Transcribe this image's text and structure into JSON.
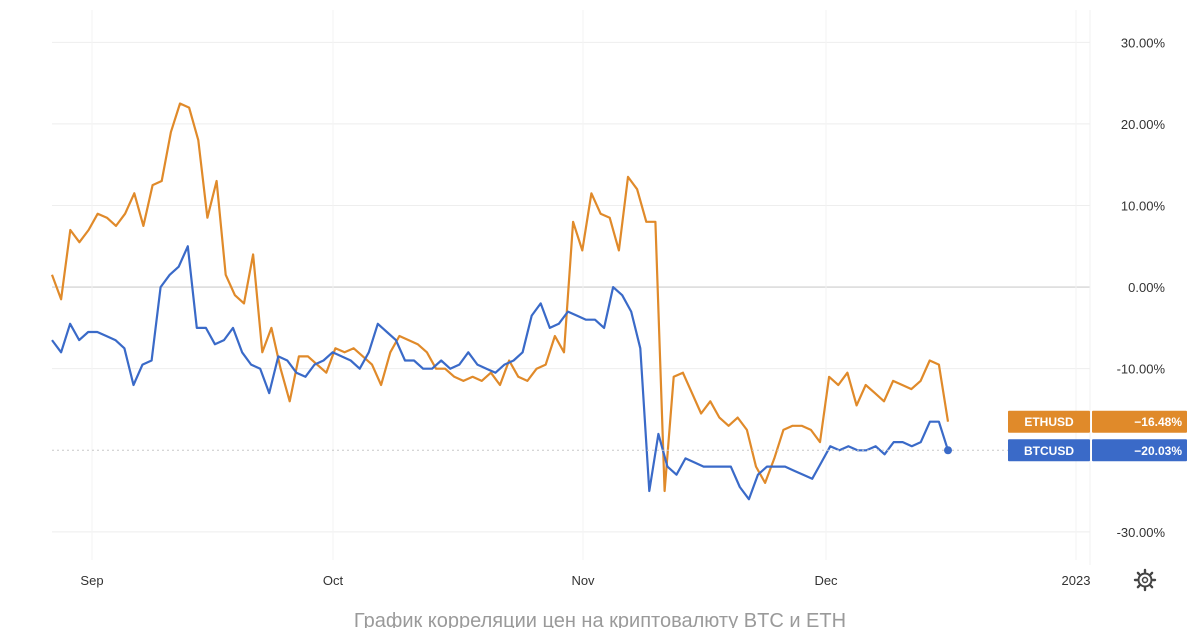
{
  "colors": {
    "eth": "#e08a2a",
    "btc": "#3a6ac8",
    "grid": "#eeeeee",
    "zero": "#cccccc",
    "axis_text": "#333333"
  },
  "caption": "График корреляции цен на криптовалюту BTC и ETH",
  "settings_icon": "gear-icon",
  "chart_data": {
    "type": "line",
    "x_ticks": [
      "Sep",
      "Oct",
      "Nov",
      "Dec",
      "2023"
    ],
    "y_ticks": [
      "30.00%",
      "20.00%",
      "10.00%",
      "0.00%",
      "-10.00%",
      "-30.00%"
    ],
    "y_tick_values": [
      30,
      20,
      10,
      0,
      -10,
      -30
    ],
    "ylim": [
      -31,
      32
    ],
    "grid": true,
    "legend": "right",
    "series": [
      {
        "name": "ETHUSD",
        "last_label": "ETHUSD",
        "last_value": "−16.48%",
        "values": [
          1.5,
          -1.5,
          7,
          5.5,
          7,
          9,
          8.5,
          7.5,
          9,
          11.5,
          7.5,
          12.5,
          13,
          19,
          22.5,
          22,
          18,
          8.5,
          13,
          1.5,
          -1,
          -2,
          4,
          -8,
          -5,
          -10,
          -14,
          -8.5,
          -8.5,
          -9.5,
          -10.5,
          -7.5,
          -8,
          -7.5,
          -8.5,
          -9.5,
          -12,
          -8,
          -6,
          -6.5,
          -7,
          -8,
          -10,
          -10,
          -11,
          -11.5,
          -11,
          -11.5,
          -10.5,
          -12,
          -9,
          -11,
          -11.5,
          -10,
          -9.5,
          -6,
          -8,
          8,
          4.5,
          11.5,
          9,
          8.5,
          4.5,
          13.5,
          12,
          8,
          8,
          -25,
          -11,
          -10.5,
          -13,
          -15.5,
          -14,
          -16,
          -17,
          -16,
          -17.5,
          -22,
          -24,
          -21,
          -17.5,
          -17,
          -17,
          -17.5,
          -19,
          -11,
          -12,
          -10.5,
          -14.5,
          -12,
          -13,
          -14,
          -11.5,
          -12,
          -12.5,
          -11.5,
          -9,
          -9.5,
          -16.5
        ],
        "color": "#e08a2a"
      },
      {
        "name": "BTCUSD",
        "last_label": "BTCUSD",
        "last_value": "−20.03%",
        "values": [
          -6.5,
          -8,
          -4.5,
          -6.5,
          -5.5,
          -5.5,
          -6,
          -6.5,
          -7.5,
          -12,
          -9.5,
          -9,
          0,
          1.5,
          2.5,
          5,
          -5,
          -5,
          -7,
          -6.5,
          -5,
          -8,
          -9.5,
          -10,
          -13,
          -8.5,
          -9,
          -10.5,
          -11,
          -9.5,
          -9,
          -8,
          -8.5,
          -9,
          -10,
          -8,
          -4.5,
          -5.5,
          -6.5,
          -9,
          -9,
          -10,
          -10,
          -9,
          -10,
          -9.5,
          -8,
          -9.5,
          -10,
          -10.5,
          -9.5,
          -9,
          -8,
          -3.5,
          -2,
          -5,
          -4.5,
          -3,
          -3.5,
          -4,
          -4,
          -5,
          0,
          -1,
          -3,
          -7.5,
          -25,
          -18,
          -22,
          -23,
          -21,
          -21.5,
          -22,
          -22,
          -22,
          -22,
          -24.5,
          -26,
          -23,
          -22,
          -22,
          -22,
          -22.5,
          -23,
          -23.5,
          -21.5,
          -19.5,
          -20,
          -19.5,
          -20,
          -20,
          -19.5,
          -20.5,
          -19,
          -19,
          -19.5,
          -19,
          -16.5,
          -16.5,
          -20
        ],
        "color": "#3a6ac8"
      }
    ]
  }
}
